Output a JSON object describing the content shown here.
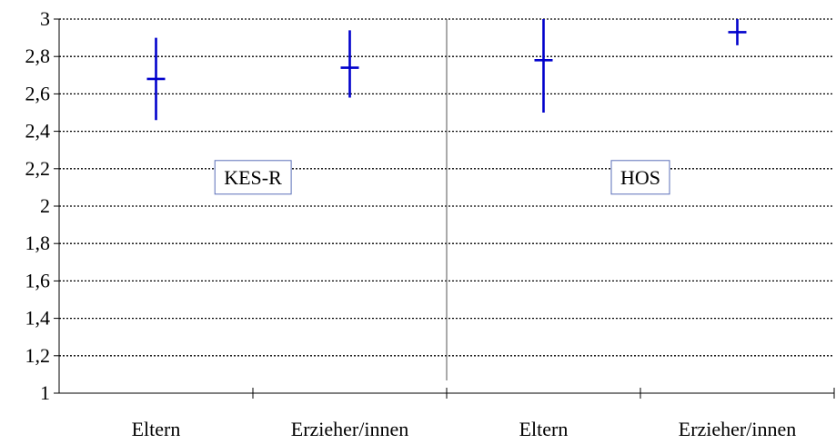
{
  "chart_data": {
    "type": "scatter",
    "title": "",
    "xlabel": "",
    "ylabel": "",
    "ylim": [
      1,
      3
    ],
    "yticks": [
      "1",
      "1,2",
      "1,4",
      "1,6",
      "1,8",
      "2",
      "2,2",
      "2,4",
      "2,6",
      "2,8",
      "3"
    ],
    "grid": true,
    "categories": [
      "Eltern",
      "Erzieher/innen",
      "Eltern",
      "Erzieher/innen"
    ],
    "series": [
      {
        "values": [
          2.68,
          2.74,
          2.78,
          2.93
        ],
        "low": [
          2.46,
          2.58,
          2.5,
          2.86
        ],
        "high": [
          2.9,
          2.94,
          3.0,
          3.0
        ],
        "color": "#0000cc"
      }
    ],
    "annotations": [
      {
        "text": "KES-R",
        "group": [
          0,
          1
        ],
        "y": 2.2
      },
      {
        "text": "HOS",
        "group": [
          2,
          3
        ],
        "y": 2.2
      }
    ]
  }
}
